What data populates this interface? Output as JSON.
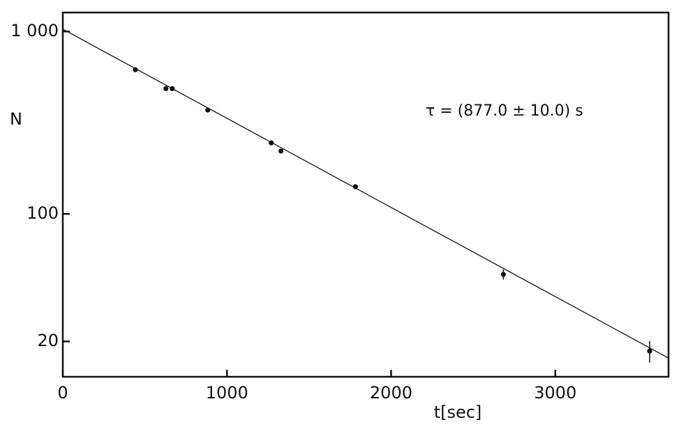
{
  "chart_data": {
    "type": "scatter",
    "x_label": "t[sec]",
    "y_label": "N",
    "annotation": "τ = (877.0 ± 10.0) s",
    "log_y": true,
    "xlim": [
      0,
      3690
    ],
    "ylim": [
      12.8,
      1270
    ],
    "xticks": [
      0,
      1000,
      2000,
      3000
    ],
    "yticks": [
      {
        "value": 1000,
        "label": "1 000"
      },
      100,
      20
    ],
    "color": "#111111",
    "series": [
      {
        "x": [
          442,
          628,
          667,
          883,
          1270,
          1329,
          1783,
          2684,
          3575
        ],
        "values": [
          617,
          486,
          486,
          371,
          245,
          221,
          141,
          46.6,
          17.7
        ],
        "errors": [
          null,
          null,
          null,
          null,
          null,
          null,
          null,
          3,
          2.4
        ]
      },
      {
        "x": [
          0,
          3690
        ],
        "values": [
          1030,
          16.2
        ]
      }
    ]
  }
}
